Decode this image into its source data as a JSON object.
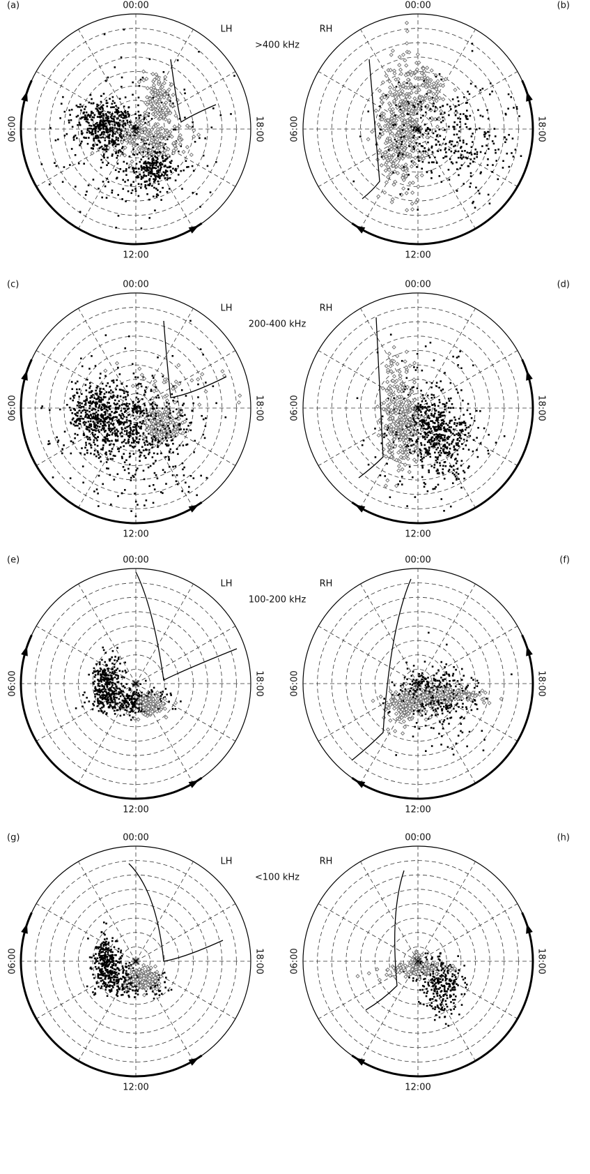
{
  "time_labels": [
    "00:00",
    "06:00",
    "12:00",
    "18:00"
  ],
  "panels": [
    {
      "label": "(a)",
      "hand": "LH",
      "band": ">400 kHz"
    },
    {
      "label": "(b)",
      "hand": "RH"
    },
    {
      "label": "(c)",
      "hand": "LH",
      "band": "200-400 kHz"
    },
    {
      "label": "(d)",
      "hand": "RH"
    },
    {
      "label": "(e)",
      "hand": "LH",
      "band": "100-200 kHz"
    },
    {
      "label": "(f)",
      "hand": "RH"
    },
    {
      "label": "(g)",
      "hand": "LH",
      "band": "<100 kHz"
    },
    {
      "label": "(h)",
      "hand": "RH"
    }
  ]
}
